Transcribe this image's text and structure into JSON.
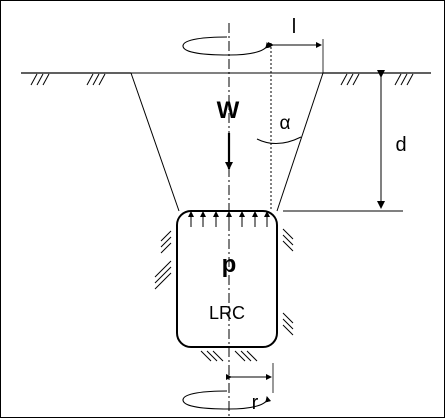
{
  "diagram": {
    "labels": {
      "weight": "W",
      "pressure": "p",
      "body": "LRC",
      "top_width": "l",
      "angle": "α",
      "depth": "d",
      "radius": "r"
    }
  }
}
